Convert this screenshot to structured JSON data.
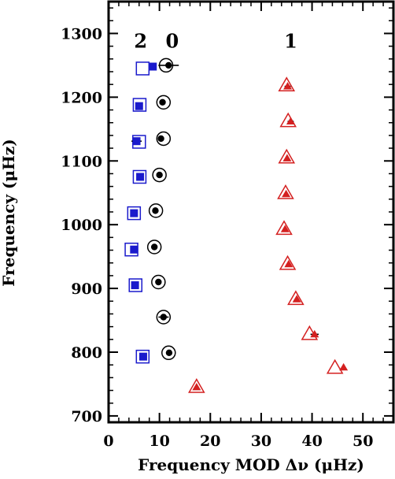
{
  "chart_data": {
    "type": "scatter",
    "title": "",
    "xlabel": "Frequency MOD Δν (μHz)",
    "ylabel": "Frequency (μHz)",
    "xlim": [
      0,
      56
    ],
    "ylim": [
      690,
      1350
    ],
    "xticks": [
      0,
      10,
      20,
      30,
      40,
      50
    ],
    "yticks": [
      700,
      800,
      900,
      1000,
      1100,
      1200,
      1300
    ],
    "grid": false,
    "legend": "none",
    "degree_labels": [
      {
        "text": "2",
        "x": 6.3,
        "y": 1300
      },
      {
        "text": "0",
        "x": 12.5,
        "y": 1300
      },
      {
        "text": "1",
        "x": 35.8,
        "y": 1300
      }
    ],
    "series": [
      {
        "degree": "2",
        "color": "#1a1acc",
        "open_marker": "square",
        "filled_marker": "square",
        "points": [
          {
            "open": [
              6.7,
              1245
            ],
            "filled": [
              8.7,
              1248
            ],
            "err": 0.5
          },
          {
            "open": [
              6.1,
              1188
            ],
            "filled": [
              6.0,
              1186
            ],
            "err": 0
          },
          {
            "open": [
              6.0,
              1130
            ],
            "filled": [
              5.5,
              1131
            ],
            "err": 1.0
          },
          {
            "open": [
              6.1,
              1075
            ],
            "filled": [
              6.2,
              1075
            ],
            "err": 0
          },
          {
            "open": [
              5.0,
              1018
            ],
            "filled": [
              5.0,
              1018
            ],
            "err": 0
          },
          {
            "open": [
              4.5,
              961
            ],
            "filled": [
              5.0,
              961
            ],
            "err": 0.7
          },
          {
            "open": [
              5.3,
              905
            ],
            "filled": [
              5.2,
              905
            ],
            "err": 0
          },
          {
            "open": [
              6.7,
              793
            ],
            "filled": [
              6.8,
              793
            ],
            "err": 0
          }
        ]
      },
      {
        "degree": "0",
        "color": "#000000",
        "open_marker": "circle",
        "filled_marker": "circle",
        "points": [
          {
            "open": [
              11.3,
              1250
            ],
            "filled": [
              11.8,
              1250
            ],
            "err": 2.0
          },
          {
            "open": [
              10.8,
              1192
            ],
            "filled": [
              10.6,
              1192
            ],
            "err": 0
          },
          {
            "open": [
              10.8,
              1135
            ],
            "filled": [
              10.3,
              1135
            ],
            "err": 0
          },
          {
            "open": [
              10.0,
              1078
            ],
            "filled": [
              10.0,
              1078
            ],
            "err": 0
          },
          {
            "open": [
              9.3,
              1022
            ],
            "filled": [
              9.2,
              1022
            ],
            "err": 0
          },
          {
            "open": [
              9.0,
              965
            ],
            "filled": [
              9.0,
              965
            ],
            "err": 0
          },
          {
            "open": [
              9.8,
              910
            ],
            "filled": [
              9.8,
              910
            ],
            "err": 0
          },
          {
            "open": [
              10.8,
              855
            ],
            "filled": [
              10.8,
              855
            ],
            "err": 1.0
          },
          {
            "open": [
              11.8,
              799
            ],
            "filled": [
              11.9,
              799
            ],
            "err": 0
          }
        ]
      },
      {
        "degree": "1",
        "color": "#d42020",
        "open_marker": "triangle",
        "filled_marker": "triangle",
        "points": [
          {
            "open": [
              35.0,
              1218
            ],
            "filled": [
              35.2,
              1217
            ],
            "err": 0.6
          },
          {
            "open": [
              35.3,
              1162
            ],
            "filled": [
              35.8,
              1162
            ],
            "err": 0.6
          },
          {
            "open": [
              35.0,
              1105
            ],
            "filled": [
              35.1,
              1104
            ],
            "err": 0
          },
          {
            "open": [
              34.8,
              1049
            ],
            "filled": [
              34.9,
              1048
            ],
            "err": 0
          },
          {
            "open": [
              34.5,
              993
            ],
            "filled": [
              34.7,
              993
            ],
            "err": 0
          },
          {
            "open": [
              35.2,
              938
            ],
            "filled": [
              35.4,
              938
            ],
            "err": 0
          },
          {
            "open": [
              36.8,
              883
            ],
            "filled": [
              37.0,
              883
            ],
            "err": 0
          },
          {
            "open": [
              39.5,
              828
            ],
            "filled": [
              40.5,
              828
            ],
            "err": 0.8
          },
          {
            "open": [
              44.5,
              775
            ],
            "filled": [
              46.2,
              776
            ],
            "err": 0
          },
          {
            "open": [
              17.3,
              745
            ],
            "filled": [
              17.3,
              745
            ],
            "err": 0
          }
        ]
      }
    ]
  }
}
